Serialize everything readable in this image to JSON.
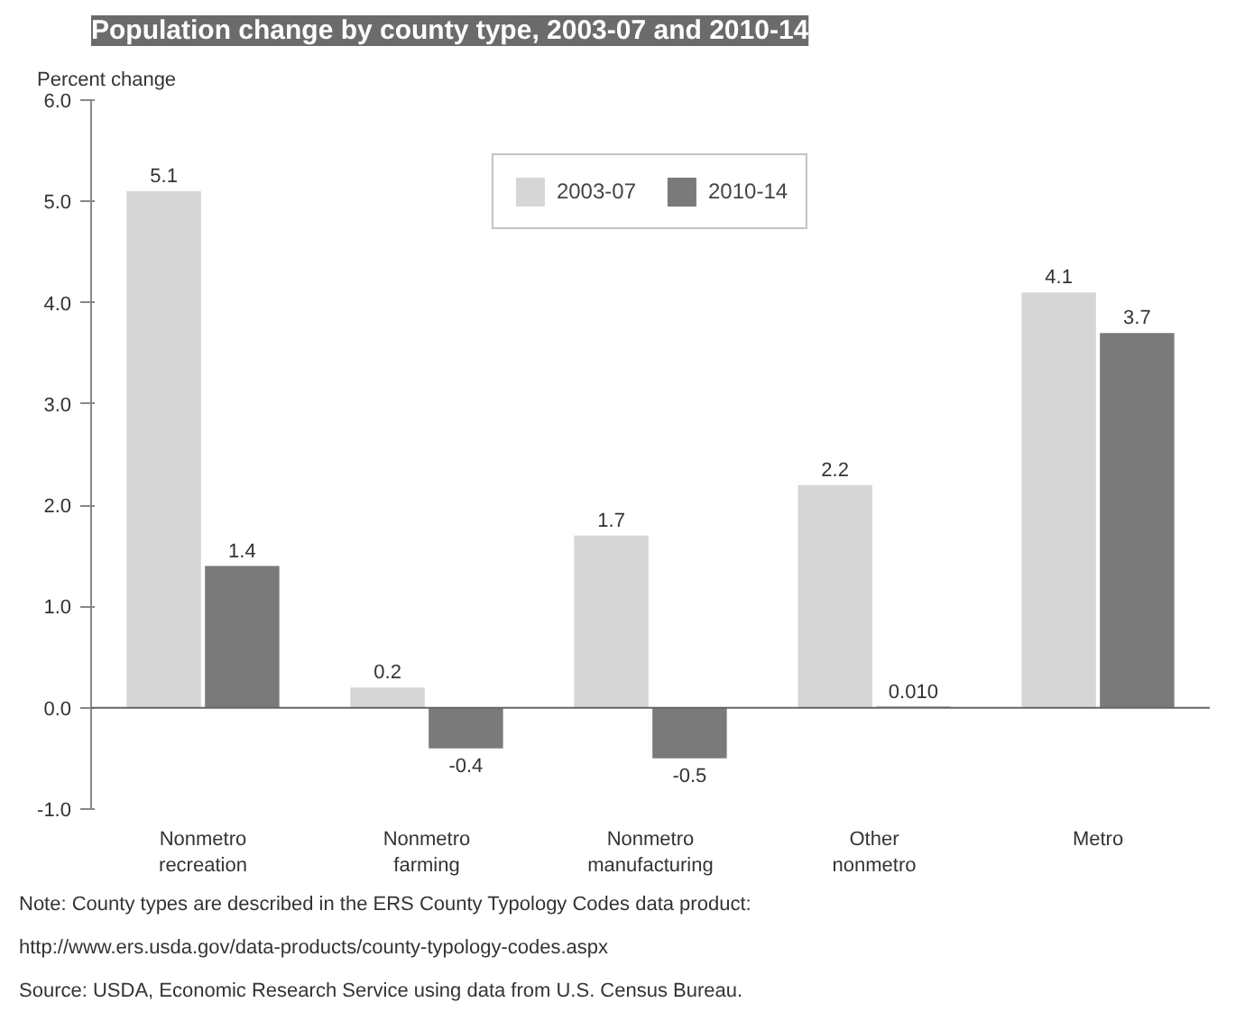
{
  "chart_data": {
    "type": "bar",
    "title": "Population change by county type, 2003-07 and 2010-14",
    "ylabel": "Percent change",
    "categories": [
      "Nonmetro\nrecreation",
      "Nonmetro\nfarming",
      "Nonmetro\nmanufacturing",
      "Other\nnonmetro",
      "Metro"
    ],
    "series": [
      {
        "name": "2003-07",
        "color": "#d6d6d6",
        "values": [
          5.1,
          0.2,
          1.7,
          2.2,
          4.1
        ],
        "value_labels": [
          "5.1",
          "0.2",
          "1.7",
          "2.2",
          "4.1"
        ]
      },
      {
        "name": "2010-14",
        "color": "#7a7a7a",
        "values": [
          1.4,
          -0.4,
          -0.5,
          0.01,
          3.7
        ],
        "value_labels": [
          "1.4",
          "-0.4",
          "-0.5",
          "0.010",
          "3.7"
        ]
      }
    ],
    "ylim": [
      -1.0,
      6.0
    ],
    "yticks": [
      {
        "value": -1,
        "label": "-1.0"
      },
      {
        "value": 0,
        "label": "0.0"
      },
      {
        "value": 1,
        "label": "1.0"
      },
      {
        "value": 2,
        "label": "2.0"
      },
      {
        "value": 3,
        "label": "3.0"
      },
      {
        "value": 4,
        "label": "4.0"
      },
      {
        "value": 5,
        "label": "5.0"
      },
      {
        "value": 6,
        "label": "6.0"
      }
    ],
    "grid": false,
    "ref_lines": [
      {
        "axis": "y",
        "value": 0,
        "color": "#666666"
      }
    ],
    "legend": "top",
    "annotations": [
      "Note: County types are described in the ERS County Typology Codes data product:",
      "http://www.ers.usda.gov/data-products/county-typology-codes.aspx",
      "Source: USDA, Economic Research Service using data from U.S. Census Bureau."
    ]
  }
}
